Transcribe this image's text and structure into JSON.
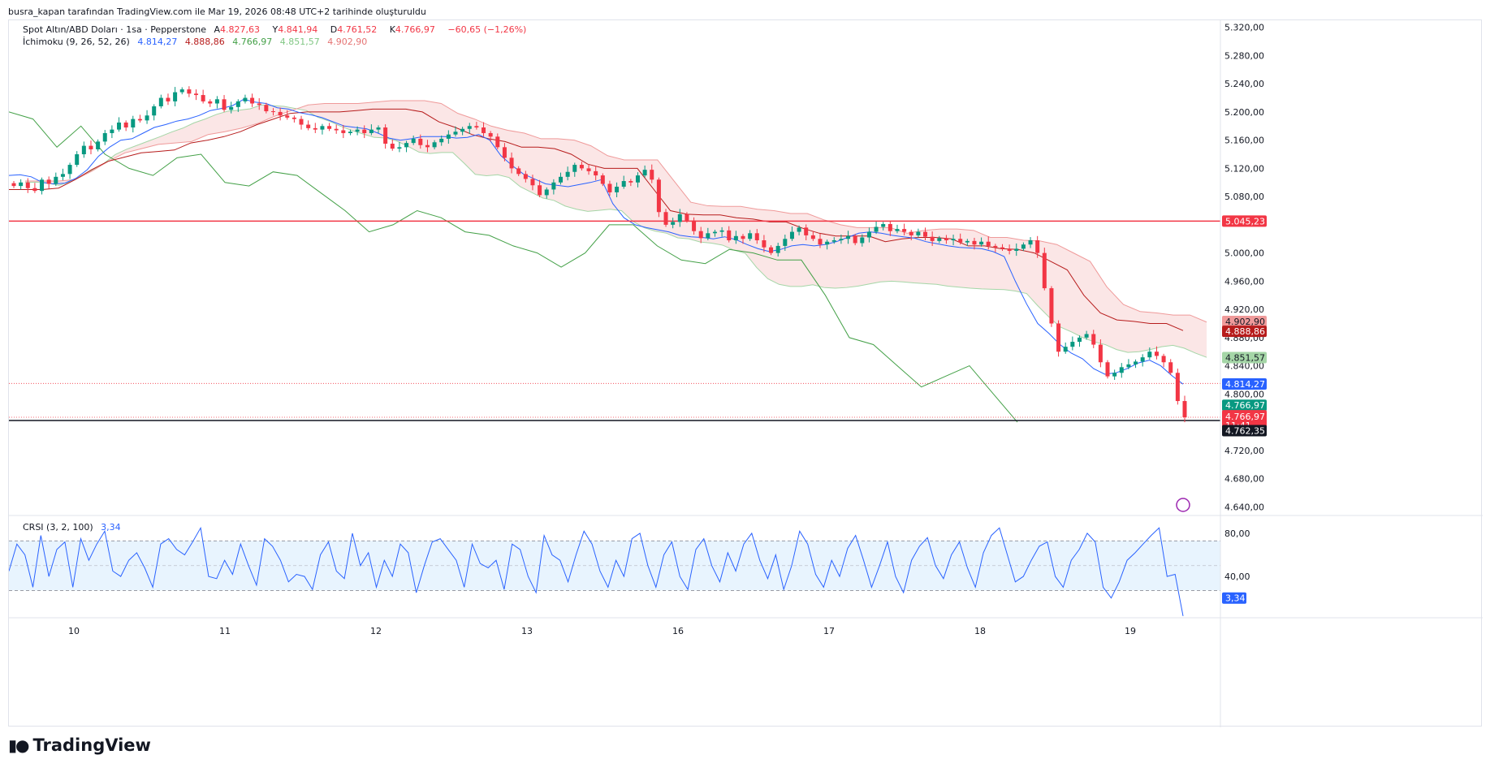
{
  "header": {
    "attribution": "busra_kapan tarafından TradingView.com ile Mar 19, 2026 08:48 UTC+2 tarihinde oluşturuldu"
  },
  "legend": {
    "symbol": "Spot Altın/ABD Doları · 1sa · Pepperstone",
    "open_label": "A",
    "open": "4.827,63",
    "high_label": "Y",
    "high": "4.841,94",
    "low_label": "D",
    "low": "4.761,52",
    "close_label": "K",
    "close": "4.766,97",
    "change": "−60,65 (−1,26%)",
    "ichimoku_name": "İchimoku (9, 26, 52, 26)",
    "ichimoku_values": [
      "4.814,27",
      "4.888,86",
      "4.766,97",
      "4.851,57",
      "4.902,90"
    ],
    "crsi_name": "CRSI (3, 2, 100)",
    "crsi_value": "3,34"
  },
  "colors": {
    "up": "#089981",
    "down": "#f23645",
    "conversion": "#2962ff",
    "base": "#b71c1c",
    "lagging": "#43a047",
    "leading_a": "#a5d6a7",
    "leading_b": "#ef9a9a",
    "crsi": "#2962ff",
    "hline": "#f23645"
  },
  "axis_labels": {
    "price_ticks": [
      "5.320,00",
      "5.280,00",
      "5.240,00",
      "5.200,00",
      "5.160,00",
      "5.120,00",
      "5.080,00",
      "5.000,00",
      "4.960,00",
      "4.920,00",
      "4.880,00",
      "4.840,00",
      "4.800,00",
      "4.720,00",
      "4.680,00",
      "4.640,00"
    ],
    "crsi_ticks": [
      "80,00",
      "40,00"
    ],
    "date_ticks": [
      "10",
      "11",
      "12",
      "13",
      "16",
      "17",
      "18",
      "19"
    ]
  },
  "price_tags": {
    "hline": "5.045,23",
    "lead_b": "4.902,90",
    "base": "4.888,86",
    "lead_a": "4.851,57",
    "conversion": "4.814,27",
    "lagging": "4.766,97",
    "last": "4.766,97",
    "countdown": "11:41",
    "low_line": "4.762,35",
    "crsi": "3,34"
  },
  "logo": {
    "text": "TradingView"
  },
  "chart_data": {
    "type": "candlestick",
    "title": "Spot Altın/ABD Doları · 1sa · Pepperstone",
    "xlabel": "",
    "ylabel": "",
    "ylim": [
      4630,
      5330
    ],
    "horizontal_line": 5045.23,
    "low_line": 4762.35,
    "last_price": 4766.97,
    "x_categories": [
      "10",
      "11",
      "12",
      "13",
      "16",
      "17",
      "18",
      "19"
    ],
    "candles_close": [
      5095,
      5100,
      5092,
      5088,
      5104,
      5098,
      5108,
      5112,
      5125,
      5140,
      5152,
      5147,
      5158,
      5170,
      5175,
      5185,
      5178,
      5190,
      5188,
      5195,
      5208,
      5220,
      5215,
      5228,
      5232,
      5226,
      5224,
      5215,
      5212,
      5218,
      5203,
      5207,
      5215,
      5220,
      5212,
      5210,
      5201,
      5200,
      5195,
      5192,
      5190,
      5182,
      5177,
      5175,
      5180,
      5176,
      5174,
      5170,
      5172,
      5175,
      5170,
      5175,
      5178,
      5155,
      5148,
      5150,
      5156,
      5162,
      5153,
      5150,
      5157,
      5162,
      5168,
      5172,
      5176,
      5180,
      5178,
      5170,
      5165,
      5150,
      5135,
      5120,
      5112,
      5105,
      5096,
      5082,
      5090,
      5100,
      5108,
      5115,
      5125,
      5120,
      5116,
      5110,
      5098,
      5086,
      5094,
      5102,
      5100,
      5110,
      5118,
      5104,
      5058,
      5040,
      5044,
      5055,
      5046,
      5031,
      5021,
      5028,
      5030,
      5032,
      5018,
      5024,
      5020,
      5028,
      5018,
      5008,
      5000,
      5010,
      5020,
      5030,
      5036,
      5025,
      5020,
      5012,
      5016,
      5018,
      5020,
      5024,
      5014,
      5022,
      5030,
      5037,
      5041,
      5031,
      5034,
      5030,
      5025,
      5030,
      5023,
      5017,
      5021,
      5018,
      5020,
      5015,
      5017,
      5012,
      5016,
      5010,
      5008,
      5006,
      5003,
      5006,
      5012,
      5018,
      5000,
      4950,
      4900,
      4860,
      4867,
      4874,
      4880,
      4885,
      4870,
      4845,
      4825,
      4830,
      4838,
      4842,
      4846,
      4852,
      4860,
      4854,
      4845,
      4830,
      4790,
      4767
    ],
    "tenkan": [
      5110,
      5111,
      5108,
      5100,
      5098,
      5099,
      5106,
      5118,
      5137,
      5150,
      5160,
      5162,
      5170,
      5178,
      5182,
      5187,
      5190,
      5195,
      5202,
      5205,
      5209,
      5218,
      5214,
      5212,
      5206,
      5204,
      5199,
      5196,
      5192,
      5186,
      5180,
      5178,
      5176,
      5170,
      5163,
      5160,
      5162,
      5165,
      5165,
      5165,
      5163,
      5164,
      5168,
      5160,
      5138,
      5124,
      5112,
      5105,
      5098,
      5096,
      5094,
      5097,
      5100,
      5104,
      5070,
      5050,
      5040,
      5036,
      5033,
      5030,
      5025,
      5023,
      5022,
      5020,
      5023,
      5019,
      5012,
      5006,
      5002,
      5005,
      5010,
      5012,
      5010,
      5012,
      5016,
      5022,
      5028,
      5030,
      5028,
      5025,
      5023,
      5021,
      5016,
      5013,
      5010,
      5008,
      5007,
      5006,
      5002,
      4995,
      4960,
      4928,
      4900,
      4886,
      4870,
      4858,
      4850,
      4836,
      4828,
      4830,
      4836,
      4844,
      4848,
      4840,
      4826,
      4814
    ],
    "kijun": [
      5090,
      5090,
      5090,
      5092,
      5104,
      5118,
      5130,
      5136,
      5142,
      5144,
      5146,
      5156,
      5160,
      5165,
      5172,
      5182,
      5190,
      5198,
      5200,
      5200,
      5200,
      5202,
      5204,
      5204,
      5204,
      5200,
      5186,
      5178,
      5168,
      5162,
      5158,
      5150,
      5150,
      5148,
      5140,
      5126,
      5120,
      5120,
      5120,
      5090,
      5060,
      5055,
      5054,
      5054,
      5050,
      5048,
      5044,
      5044,
      5035,
      5028,
      5024,
      5024,
      5024,
      5016,
      5020,
      5022,
      5022,
      5020,
      5010,
      5010,
      5006,
      5005,
      5000,
      4988,
      4976,
      4940,
      4915,
      4905,
      4903,
      4900,
      4900,
      4890
    ],
    "chikou": [
      5200,
      5190,
      5150,
      5180,
      5140,
      5120,
      5110,
      5135,
      5140,
      5100,
      5095,
      5115,
      5110,
      5085,
      5060,
      5030,
      5040,
      5060,
      5050,
      5030,
      5025,
      5010,
      5000,
      4980,
      5000,
      5040,
      5040,
      5010,
      4990,
      4985,
      5005,
      5000,
      4990,
      4990,
      4940,
      4880,
      4870,
      4840,
      4810,
      4825,
      4840,
      4800,
      4760
    ],
    "crsi": [
      45,
      70,
      60,
      30,
      78,
      40,
      65,
      72,
      30,
      75,
      55,
      70,
      82,
      45,
      40,
      55,
      62,
      48,
      30,
      70,
      75,
      65,
      60,
      72,
      85,
      40,
      38,
      55,
      42,
      70,
      50,
      32,
      75,
      68,
      55,
      35,
      42,
      40,
      28,
      60,
      72,
      45,
      38,
      80,
      50,
      62,
      30,
      55,
      40,
      70,
      62,
      25,
      50,
      72,
      75,
      65,
      55,
      30,
      70,
      52,
      48,
      55,
      28,
      70,
      65,
      40,
      25,
      78,
      60,
      55,
      35,
      60,
      82,
      70,
      45,
      30,
      55,
      40,
      75,
      80,
      50,
      30,
      60,
      72,
      40,
      28,
      65,
      75,
      50,
      35,
      62,
      45,
      70,
      80,
      55,
      38,
      60,
      28,
      50,
      82,
      70,
      42,
      30,
      55,
      40,
      66,
      78,
      55,
      30,
      50,
      72,
      40,
      25,
      55,
      68,
      76,
      50,
      38,
      60,
      72,
      48,
      30,
      62,
      78,
      85,
      60,
      35,
      40,
      55,
      68,
      72,
      40,
      30,
      55,
      65,
      80,
      72,
      30,
      20,
      35,
      55,
      62,
      70,
      78,
      85,
      40,
      42,
      3.34
    ],
    "crsi_ylim": [
      10,
      95
    ],
    "crsi_band": [
      27,
      73
    ]
  }
}
